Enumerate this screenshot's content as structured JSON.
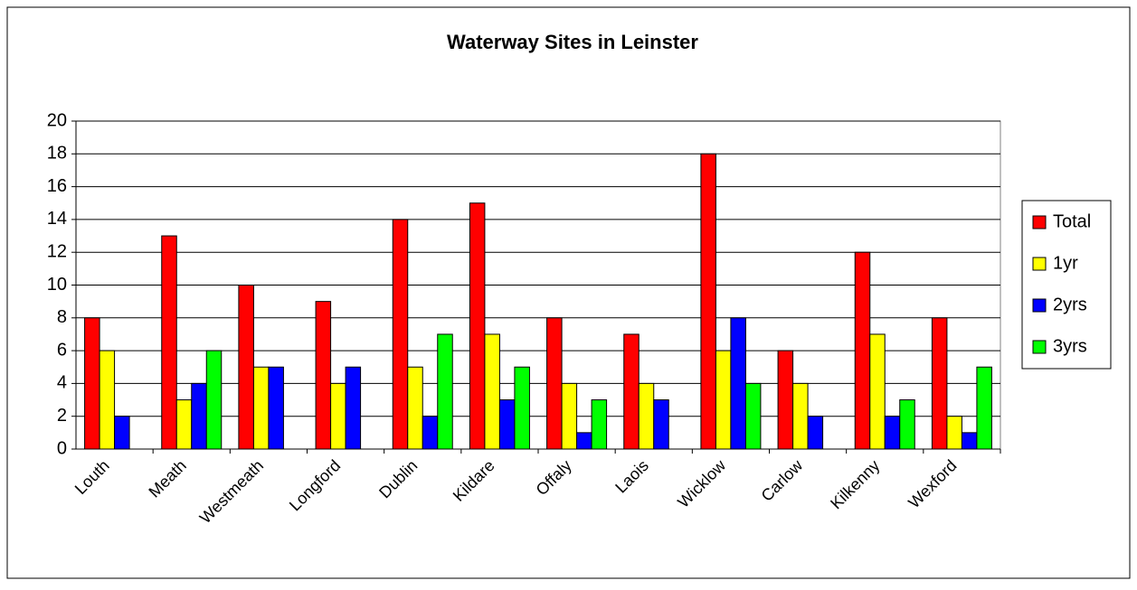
{
  "chart_data": {
    "type": "bar",
    "title": "Waterway Sites in Leinster",
    "categories": [
      "Louth",
      "Meath",
      "Westmeath",
      "Longford",
      "Dublin",
      "Kildare",
      "Offaly",
      "Laois",
      "Wicklow",
      "Carlow",
      "Kilkenny",
      "Wexford"
    ],
    "series": [
      {
        "name": "Total",
        "color": "#ff0000",
        "values": [
          8,
          13,
          10,
          9,
          14,
          15,
          8,
          7,
          18,
          6,
          12,
          8
        ]
      },
      {
        "name": "1yr",
        "color": "#ffff00",
        "values": [
          6,
          3,
          5,
          4,
          5,
          7,
          4,
          4,
          6,
          4,
          7,
          2
        ]
      },
      {
        "name": "2yrs",
        "color": "#0000ff",
        "values": [
          2,
          4,
          5,
          5,
          2,
          3,
          1,
          3,
          8,
          2,
          2,
          1
        ]
      },
      {
        "name": "3yrs",
        "color": "#00ff00",
        "values": [
          0,
          6,
          0,
          0,
          7,
          5,
          3,
          0,
          4,
          0,
          3,
          5
        ]
      }
    ],
    "ylim": [
      0,
      20
    ],
    "yticks": [
      0,
      2,
      4,
      6,
      8,
      10,
      12,
      14,
      16,
      18,
      20
    ],
    "grid": true,
    "legend": "right"
  }
}
